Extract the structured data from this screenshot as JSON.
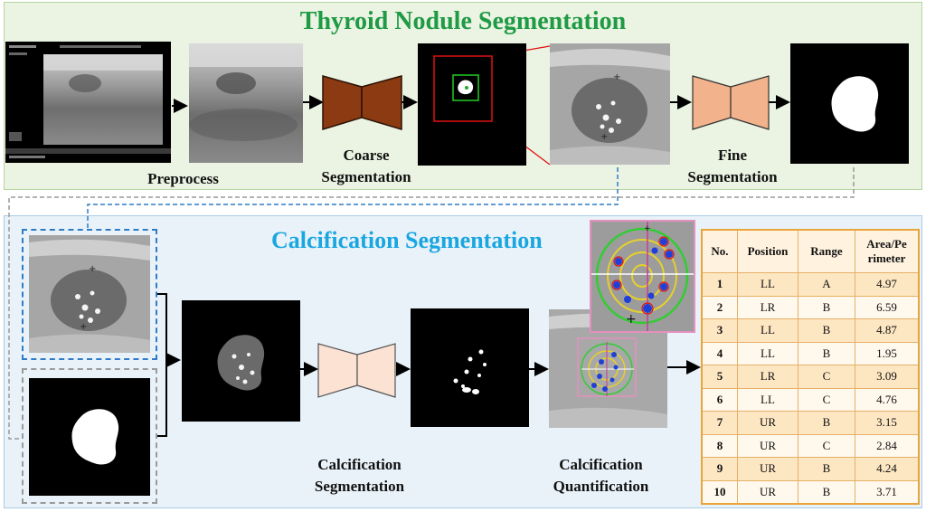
{
  "titles": {
    "top": "Thyroid Nodule Segmentation",
    "bottom": "Calcification Segmentation"
  },
  "stage_labels": {
    "preprocess": "Preprocess",
    "coarse_line1": "Coarse",
    "coarse_line2": "Segmentation",
    "fine_line1": "Fine",
    "fine_line2": "Segmentation",
    "calc_seg_line1": "Calcification",
    "calc_seg_line2": "Segmentation",
    "calc_quant_line1": "Calcification",
    "calc_quant_line2": "Quantification"
  },
  "colors": {
    "top_title": "#1f9a45",
    "bottom_title": "#1aa6e0",
    "coarse_net": "#8b3a12",
    "fine_net": "#f2b28c",
    "calc_net": "#fbe2d3",
    "crop_box": "#e01010",
    "bbox": "#22cc22",
    "connector_blue": "#2f7bc6",
    "connector_gray": "#9a9a9a",
    "table_border": "#e9a43a"
  },
  "table": {
    "headers": [
      "No.",
      "Position",
      "Range",
      "Area/Pe rimeter"
    ],
    "header_area_line1": "Area/Pe",
    "header_area_line2": "rimeter",
    "rows": [
      {
        "no": "1",
        "position": "LL",
        "range": "A",
        "value": "4.97"
      },
      {
        "no": "2",
        "position": "LR",
        "range": "B",
        "value": "6.59"
      },
      {
        "no": "3",
        "position": "LL",
        "range": "B",
        "value": "4.87"
      },
      {
        "no": "4",
        "position": "LL",
        "range": "B",
        "value": "1.95"
      },
      {
        "no": "5",
        "position": "LR",
        "range": "C",
        "value": "3.09"
      },
      {
        "no": "6",
        "position": "LL",
        "range": "C",
        "value": "4.76"
      },
      {
        "no": "7",
        "position": "UR",
        "range": "B",
        "value": "3.15"
      },
      {
        "no": "8",
        "position": "UR",
        "range": "C",
        "value": "2.84"
      },
      {
        "no": "9",
        "position": "UR",
        "range": "B",
        "value": "4.24"
      },
      {
        "no": "10",
        "position": "UR",
        "range": "B",
        "value": "3.71"
      }
    ]
  }
}
